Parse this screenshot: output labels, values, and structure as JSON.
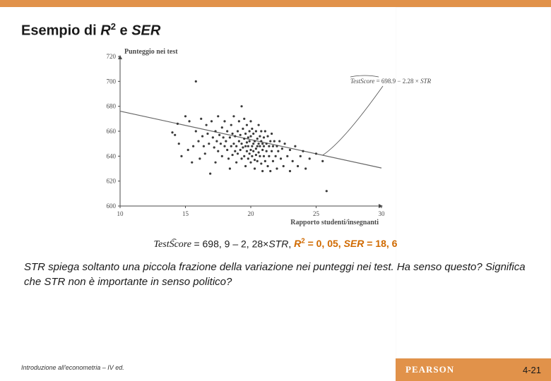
{
  "title": {
    "prefix": "Esempio di ",
    "r": "R",
    "sup": "2",
    "mid": " e ",
    "ser": "SER"
  },
  "chart": {
    "type": "scatter",
    "y_label": "Punteggio nei test",
    "x_label": "Rapporto studenti/insegnanti",
    "xlim": [
      10,
      30
    ],
    "ylim": [
      600,
      720
    ],
    "xticks": [
      10,
      15,
      20,
      25,
      30
    ],
    "yticks": [
      600,
      620,
      640,
      660,
      680,
      700,
      720
    ],
    "axis_color": "#4a4a4a",
    "text_color": "#4a4a4a",
    "label_fontsize": 10,
    "tick_fontsize": 9,
    "point_color": "#3a3a3a",
    "point_radius": 1.6,
    "line_color": "#666666",
    "line_width": 1.2,
    "line_intercept": 698.9,
    "line_slope": -2.28,
    "annotation": "TestScore = 698.9 − 2.28 × STR",
    "annotation_hat": true,
    "data": [
      [
        14.0,
        659
      ],
      [
        14.2,
        657
      ],
      [
        14.4,
        666
      ],
      [
        14.5,
        650
      ],
      [
        14.7,
        640
      ],
      [
        15.0,
        672
      ],
      [
        15.2,
        645
      ],
      [
        15.3,
        668
      ],
      [
        15.5,
        635
      ],
      [
        15.6,
        648
      ],
      [
        15.8,
        660
      ],
      [
        15.8,
        700
      ],
      [
        16.0,
        652
      ],
      [
        16.1,
        638
      ],
      [
        16.2,
        670
      ],
      [
        16.3,
        656
      ],
      [
        16.4,
        648
      ],
      [
        16.5,
        642
      ],
      [
        16.6,
        665
      ],
      [
        16.7,
        658
      ],
      [
        16.8,
        650
      ],
      [
        16.9,
        626
      ],
      [
        17.0,
        668
      ],
      [
        17.1,
        655
      ],
      [
        17.2,
        647
      ],
      [
        17.3,
        660
      ],
      [
        17.3,
        635
      ],
      [
        17.4,
        652
      ],
      [
        17.5,
        644
      ],
      [
        17.5,
        672
      ],
      [
        17.6,
        657
      ],
      [
        17.7,
        650
      ],
      [
        17.8,
        663
      ],
      [
        17.8,
        640
      ],
      [
        17.9,
        655
      ],
      [
        18.0,
        648
      ],
      [
        18.0,
        668
      ],
      [
        18.1,
        652
      ],
      [
        18.2,
        645
      ],
      [
        18.2,
        660
      ],
      [
        18.3,
        638
      ],
      [
        18.4,
        655
      ],
      [
        18.4,
        630
      ],
      [
        18.5,
        648
      ],
      [
        18.5,
        665
      ],
      [
        18.6,
        641
      ],
      [
        18.6,
        658
      ],
      [
        18.7,
        650
      ],
      [
        18.7,
        672
      ],
      [
        18.8,
        644
      ],
      [
        18.8,
        656
      ],
      [
        18.9,
        648
      ],
      [
        18.9,
        635
      ],
      [
        19.0,
        660
      ],
      [
        19.0,
        642
      ],
      [
        19.1,
        652
      ],
      [
        19.1,
        668
      ],
      [
        19.2,
        645
      ],
      [
        19.2,
        657
      ],
      [
        19.3,
        650
      ],
      [
        19.3,
        638
      ],
      [
        19.3,
        680
      ],
      [
        19.4,
        662
      ],
      [
        19.4,
        647
      ],
      [
        19.5,
        654
      ],
      [
        19.5,
        640
      ],
      [
        19.5,
        670
      ],
      [
        19.6,
        648
      ],
      [
        19.6,
        658
      ],
      [
        19.6,
        632
      ],
      [
        19.7,
        651
      ],
      [
        19.7,
        644
      ],
      [
        19.7,
        665
      ],
      [
        19.8,
        655
      ],
      [
        19.8,
        638
      ],
      [
        19.8,
        648
      ],
      [
        19.9,
        660
      ],
      [
        19.9,
        642
      ],
      [
        19.9,
        652
      ],
      [
        20.0,
        645
      ],
      [
        20.0,
        668
      ],
      [
        20.0,
        635
      ],
      [
        20.0,
        656
      ],
      [
        20.1,
        648
      ],
      [
        20.1,
        640
      ],
      [
        20.1,
        662
      ],
      [
        20.2,
        650
      ],
      [
        20.2,
        644
      ],
      [
        20.2,
        658
      ],
      [
        20.3,
        637
      ],
      [
        20.3,
        652
      ],
      [
        20.3,
        630
      ],
      [
        20.4,
        646
      ],
      [
        20.4,
        660
      ],
      [
        20.4,
        641
      ],
      [
        20.5,
        654
      ],
      [
        20.5,
        648
      ],
      [
        20.5,
        636
      ],
      [
        20.6,
        650
      ],
      [
        20.6,
        665
      ],
      [
        20.6,
        643
      ],
      [
        20.7,
        656
      ],
      [
        20.7,
        640
      ],
      [
        20.7,
        648
      ],
      [
        20.8,
        652
      ],
      [
        20.8,
        634
      ],
      [
        20.8,
        660
      ],
      [
        20.9,
        645
      ],
      [
        20.9,
        650
      ],
      [
        20.9,
        628
      ],
      [
        21.0,
        655
      ],
      [
        21.0,
        640
      ],
      [
        21.0,
        648
      ],
      [
        21.1,
        660
      ],
      [
        21.1,
        636
      ],
      [
        21.2,
        650
      ],
      [
        21.2,
        644
      ],
      [
        21.3,
        656
      ],
      [
        21.3,
        632
      ],
      [
        21.4,
        648
      ],
      [
        21.4,
        640
      ],
      [
        21.5,
        652
      ],
      [
        21.5,
        628
      ],
      [
        21.6,
        644
      ],
      [
        21.6,
        658
      ],
      [
        21.7,
        648
      ],
      [
        21.7,
        636
      ],
      [
        21.8,
        652
      ],
      [
        21.9,
        640
      ],
      [
        22.0,
        648
      ],
      [
        22.0,
        630
      ],
      [
        22.1,
        644
      ],
      [
        22.2,
        652
      ],
      [
        22.3,
        638
      ],
      [
        22.4,
        646
      ],
      [
        22.5,
        632
      ],
      [
        22.6,
        650
      ],
      [
        22.8,
        640
      ],
      [
        23.0,
        645
      ],
      [
        23.0,
        628
      ],
      [
        23.2,
        636
      ],
      [
        23.4,
        648
      ],
      [
        23.6,
        632
      ],
      [
        23.8,
        640
      ],
      [
        24.0,
        644
      ],
      [
        24.2,
        630
      ],
      [
        24.5,
        638
      ],
      [
        25.0,
        642
      ],
      [
        25.5,
        636
      ],
      [
        25.8,
        612
      ]
    ]
  },
  "equation": {
    "testscore": "TestScore",
    "eq": " = 698, 9 – 2, 28×",
    "str": "STR",
    "comma": ", ",
    "r2": "R",
    "r2sup": "2",
    "r2val": " = 0, 05, ",
    "ser": "SER",
    "serval": " = 18, 6"
  },
  "explain": "STR spiega soltanto una piccola frazione della variazione nei punteggi nei test. Ha senso questo? Significa che STR non è importante in senso politico?",
  "footer": {
    "left": "Introduzione all'econometria – IV ed.",
    "brand": "PEARSON",
    "page": "4-21"
  }
}
